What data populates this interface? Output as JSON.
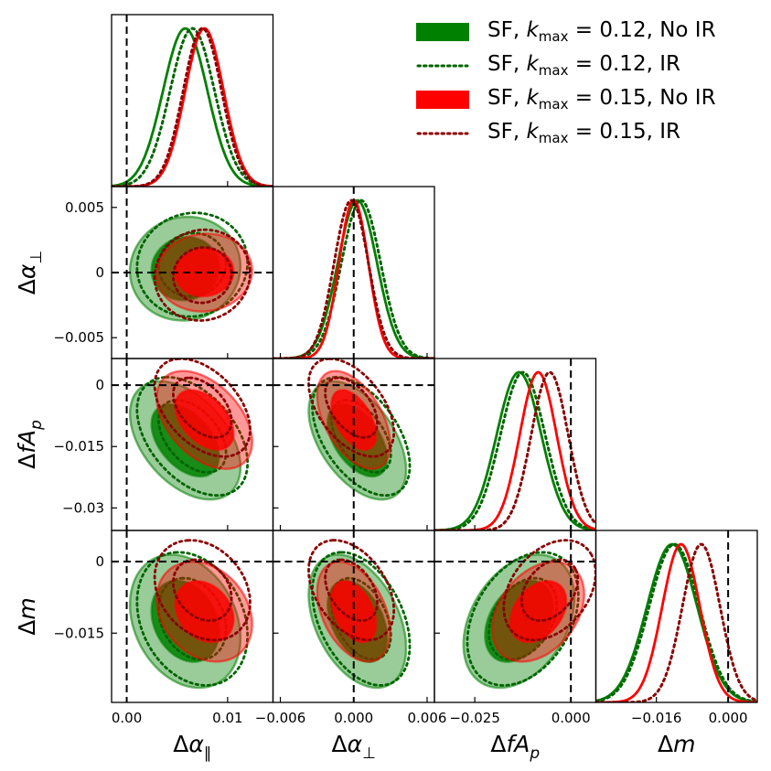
{
  "chart_data": {
    "type": "corner",
    "parameters": [
      {
        "key": "dapar",
        "label": "Δα_∥",
        "label_main": "Δα",
        "label_sub": "∥",
        "range": [
          -0.0015,
          0.0145
        ],
        "ticks": [
          {
            "v": 0.0,
            "t": "0.00"
          },
          {
            "v": 0.01,
            "t": "0.01"
          }
        ],
        "truth": 0.0
      },
      {
        "key": "daperp",
        "label": "Δα_⊥",
        "label_main": "Δα",
        "label_sub": "⊥",
        "range": [
          -0.0066,
          0.0066
        ],
        "ticks": [
          {
            "v": -0.005,
            "t": "−0.005"
          },
          {
            "v": 0.0,
            "t": "0"
          },
          {
            "v": 0.005,
            "t": "0.005"
          }
        ],
        "xticks": [
          {
            "v": -0.006,
            "t": "−0.006"
          },
          {
            "v": 0.0,
            "t": "0.000"
          },
          {
            "v": 0.006,
            "t": "0.006"
          }
        ],
        "truth": 0.0
      },
      {
        "key": "dfap",
        "label": "ΔfA_p",
        "label_main": "ΔfA",
        "label_sub": "p",
        "range": [
          -0.0355,
          0.0065
        ],
        "ticks": [
          {
            "v": -0.03,
            "t": "−0.03"
          },
          {
            "v": -0.015,
            "t": "−0.015"
          },
          {
            "v": 0.0,
            "t": "0"
          }
        ],
        "xticks": [
          {
            "v": -0.025,
            "t": "−0.025"
          },
          {
            "v": 0.0,
            "t": "0.000"
          }
        ],
        "truth": 0.0
      },
      {
        "key": "dm",
        "label": "Δm",
        "label_main": "Δm",
        "label_sub": "",
        "range": [
          -0.0295,
          0.0065
        ],
        "ticks": [
          {
            "v": -0.015,
            "t": "−0.015"
          },
          {
            "v": 0.0,
            "t": "0"
          }
        ],
        "xticks": [
          {
            "v": -0.016,
            "t": "−0.016"
          },
          {
            "v": 0.0,
            "t": "0.000"
          }
        ],
        "truth": 0.0
      }
    ],
    "series": [
      {
        "name": "SF, k_max = 0.12, No IR",
        "label_pre": "SF, ",
        "label_k": "k",
        "label_sub": "max",
        "label_post": " = 0.12, No IR",
        "color": "#008000",
        "style": "filled",
        "mean": [
          0.0058,
          0.0003,
          -0.0135,
          -0.0125
        ],
        "sigma": [
          0.0022,
          0.0016,
          0.0058,
          0.0056
        ],
        "corr": {
          "0-1": 0.05,
          "0-2": -0.45,
          "0-3": -0.25,
          "1-2": -0.5,
          "1-3": -0.4,
          "2-3": 0.35
        }
      },
      {
        "name": "SF, k_max = 0.12, IR",
        "label_pre": "SF, ",
        "label_k": "k",
        "label_sub": "max",
        "label_post": " = 0.12, IR",
        "color": "#006400",
        "style": "dotted",
        "mean": [
          0.0065,
          0.0006,
          -0.0125,
          -0.012
        ],
        "sigma": [
          0.0022,
          0.0016,
          0.0058,
          0.0056
        ],
        "corr": {
          "0-1": 0.05,
          "0-2": -0.45,
          "0-3": -0.25,
          "1-2": -0.5,
          "1-3": -0.4,
          "2-3": 0.35
        }
      },
      {
        "name": "SF, k_max = 0.15, No IR",
        "label_pre": "SF, ",
        "label_k": "k",
        "label_sub": "max",
        "label_post": " = 0.15, No IR",
        "color": "#ff0000",
        "style": "filled",
        "mean": [
          0.0077,
          0.0,
          -0.0085,
          -0.0105
        ],
        "sigma": [
          0.0019,
          0.0012,
          0.0048,
          0.0042
        ],
        "corr": {
          "0-1": 0.05,
          "0-2": -0.45,
          "0-3": -0.25,
          "1-2": -0.5,
          "1-3": -0.4,
          "2-3": 0.35
        }
      },
      {
        "name": "SF, k_max = 0.15, IR",
        "label_pre": "SF, ",
        "label_k": "k",
        "label_sub": "max",
        "label_post": " = 0.15, IR",
        "color": "#8b0000",
        "style": "dotted",
        "mean": [
          0.0075,
          -0.0002,
          -0.0055,
          -0.006
        ],
        "sigma": [
          0.0019,
          0.0014,
          0.0048,
          0.0042
        ],
        "corr": {
          "0-1": 0.05,
          "0-2": -0.45,
          "0-3": -0.25,
          "1-2": -0.5,
          "1-3": -0.4,
          "2-3": 0.35
        }
      }
    ],
    "contour_levels": [
      "68%",
      "95%"
    ],
    "truth_lines": "dashed black at 0"
  }
}
